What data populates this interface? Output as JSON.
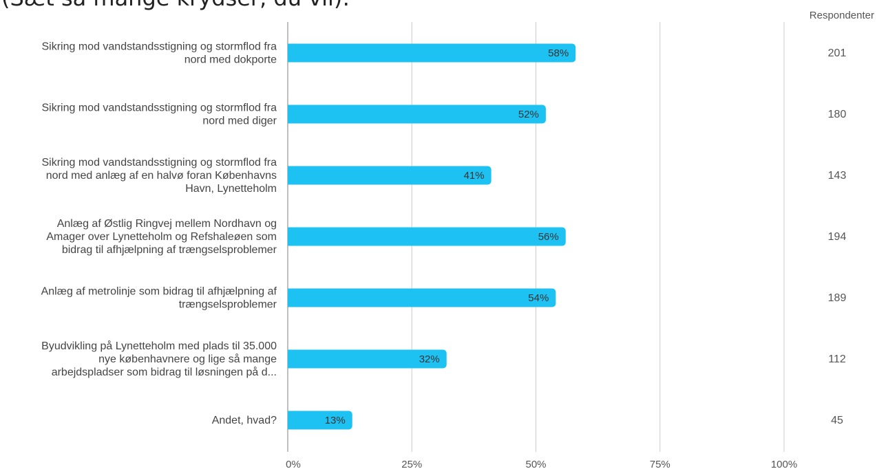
{
  "header_fragment": "(Sæt så mange krydser, du vil):",
  "respondents_header": "Respondenter",
  "chart_data": {
    "type": "bar",
    "orientation": "horizontal",
    "categories": [
      [
        "Sikring mod vandstandsstigning og stormflod fra",
        "nord med dokporte"
      ],
      [
        "Sikring mod vandstandsstigning og stormflod fra",
        "nord med diger"
      ],
      [
        "Sikring mod vandstandsstigning og stormflod fra",
        "nord med anlæg af en halvø foran Københavns",
        "Havn, Lynetteholm"
      ],
      [
        "Anlæg af Østlig Ringvej mellem Nordhavn og",
        "Amager over Lynetteholm og Refshaleøen som",
        "bidrag til afhjælpning af trængselsproblemer"
      ],
      [
        "Anlæg af metrolinje som bidrag til afhjælpning af",
        "trængselsproblemer"
      ],
      [
        "Byudvikling på Lynetteholm med plads til 35.000",
        "nye københavnere og lige så mange",
        "arbejdspladser som bidrag til løsningen på d..."
      ],
      [
        "Andet, hvad?"
      ]
    ],
    "values": [
      58,
      52,
      41,
      56,
      54,
      32,
      13
    ],
    "value_labels": [
      "58%",
      "52%",
      "41%",
      "56%",
      "54%",
      "32%",
      "13%"
    ],
    "respondents": [
      "201",
      "180",
      "143",
      "194",
      "189",
      "112",
      "45"
    ],
    "x_ticks": [
      0,
      25,
      50,
      75,
      100
    ],
    "x_tick_labels": [
      "0%",
      "25%",
      "50%",
      "75%",
      "100%"
    ],
    "xlim": [
      0,
      100
    ],
    "grid": true,
    "colors": {
      "bar": "#1DC2F2",
      "grid": "#CCCCCC",
      "axis": "#AAAAAA"
    }
  }
}
